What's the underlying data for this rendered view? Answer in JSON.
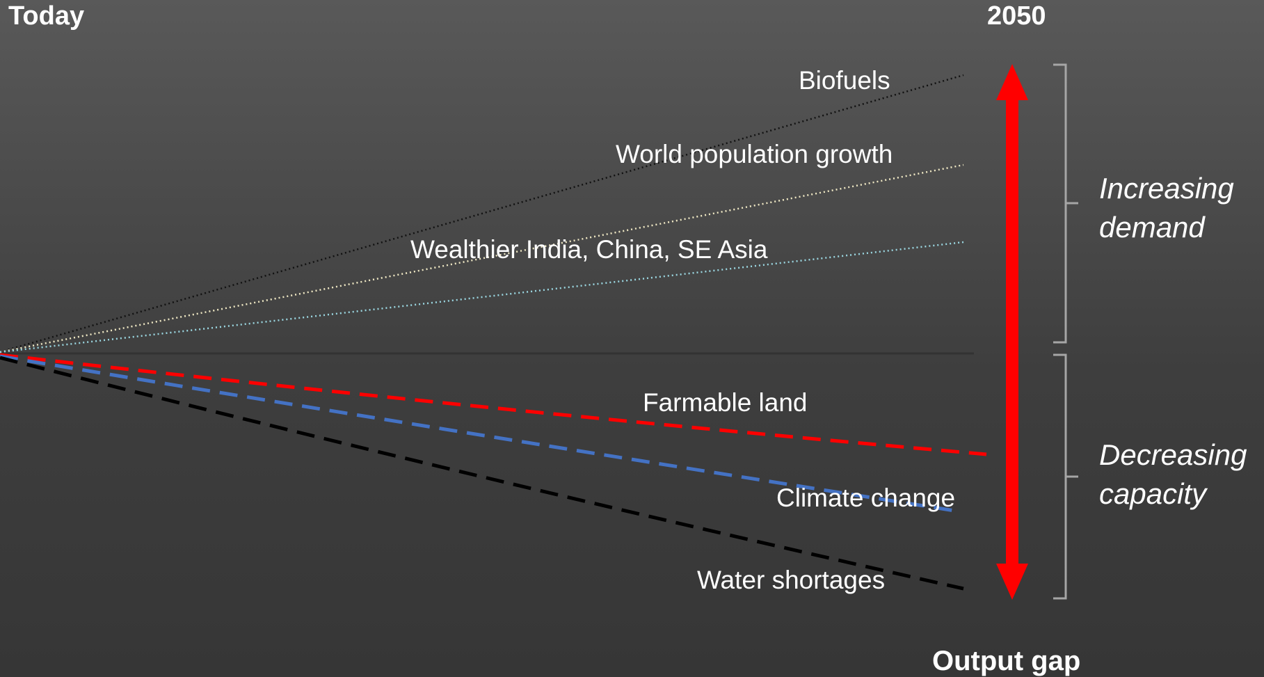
{
  "header": {
    "left_label": "Today",
    "right_label": "2050"
  },
  "demand_lines": [
    {
      "label": "Biofuels",
      "color": "#111111",
      "style": "dotted"
    },
    {
      "label": "World population growth",
      "color": "#efe8c4",
      "style": "dotted"
    },
    {
      "label": "Wealthier India, China, SE Asia",
      "color": "#9ad6e0",
      "style": "dotted"
    }
  ],
  "capacity_lines": [
    {
      "label": "Farmable land",
      "color": "#ff0000",
      "style": "dashed"
    },
    {
      "label": "Climate change",
      "color": "#4472c4",
      "style": "dashed"
    },
    {
      "label": "Water shortages",
      "color": "#000000",
      "style": "dashed"
    }
  ],
  "groups": {
    "increasing": {
      "line1": "Increasing",
      "line2": "demand"
    },
    "decreasing": {
      "line1": "Decreasing",
      "line2": "capacity"
    }
  },
  "gap": {
    "label": "Output gap",
    "arrow_color": "#ff0000"
  },
  "colors": {
    "baseline": "#333333",
    "bracket": "#a6a6a6"
  }
}
